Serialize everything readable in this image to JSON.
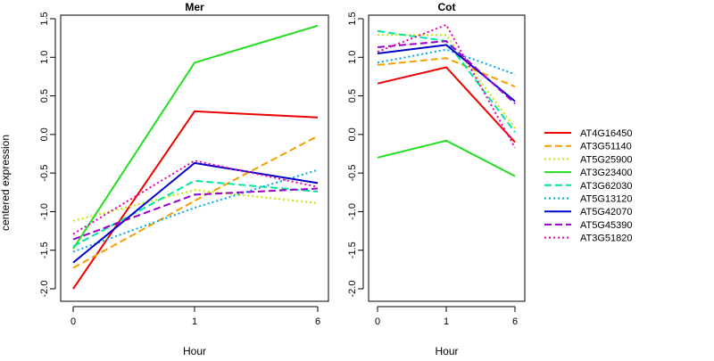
{
  "chart_data": {
    "type": "line",
    "ylabel": "centered expression",
    "xlabel": "Hour",
    "x_ticks": [
      "0",
      "1",
      "6"
    ],
    "ylim": [
      -2.0,
      1.5
    ],
    "y_ticks": [
      "-2.0",
      "-1.5",
      "-1.0",
      "-0.5",
      "0.0",
      "0.5",
      "1.0",
      "1.5"
    ],
    "legend_position": "right",
    "grid": false,
    "series_styles": [
      {
        "name": "AT4G16450",
        "color": "#ee0000",
        "dash": "solid"
      },
      {
        "name": "AT3G51140",
        "color": "#f5a000",
        "dash": "dashed"
      },
      {
        "name": "AT5G25900",
        "color": "#c8e600",
        "dash": "dotted"
      },
      {
        "name": "AT3G23400",
        "color": "#22dd22",
        "dash": "solid"
      },
      {
        "name": "AT3G62030",
        "color": "#00e6a0",
        "dash": "dashed"
      },
      {
        "name": "AT5G13120",
        "color": "#00a8e6",
        "dash": "dotted"
      },
      {
        "name": "AT5G42070",
        "color": "#0000cc",
        "dash": "solid"
      },
      {
        "name": "AT5G45390",
        "color": "#9900cc",
        "dash": "dashed"
      },
      {
        "name": "AT3G51820",
        "color": "#e600b4",
        "dash": "dotted"
      }
    ],
    "panels": [
      {
        "title": "Mer",
        "series": [
          {
            "name": "AT4G16450",
            "values": [
              -2.0,
              0.3,
              0.22
            ]
          },
          {
            "name": "AT3G51140",
            "values": [
              -1.73,
              -0.86,
              -0.02
            ]
          },
          {
            "name": "AT5G25900",
            "values": [
              -1.12,
              -0.72,
              -0.89
            ]
          },
          {
            "name": "AT3G23400",
            "values": [
              -1.48,
              0.93,
              1.41
            ]
          },
          {
            "name": "AT3G62030",
            "values": [
              -1.45,
              -0.6,
              -0.74
            ]
          },
          {
            "name": "AT5G13120",
            "values": [
              -1.52,
              -0.95,
              -0.46
            ]
          },
          {
            "name": "AT5G42070",
            "values": [
              -1.66,
              -0.37,
              -0.63
            ]
          },
          {
            "name": "AT5G45390",
            "values": [
              -1.36,
              -0.78,
              -0.7
            ]
          },
          {
            "name": "AT3G51820",
            "values": [
              -1.29,
              -0.34,
              -0.68
            ]
          }
        ]
      },
      {
        "title": "Cot",
        "series": [
          {
            "name": "AT4G16450",
            "values": [
              0.66,
              0.87,
              -0.1
            ]
          },
          {
            "name": "AT3G51140",
            "values": [
              0.9,
              0.99,
              0.62
            ]
          },
          {
            "name": "AT5G25900",
            "values": [
              1.29,
              1.29,
              0.08
            ]
          },
          {
            "name": "AT3G23400",
            "values": [
              -0.3,
              -0.08,
              -0.54
            ]
          },
          {
            "name": "AT3G62030",
            "values": [
              1.34,
              1.21,
              0.03
            ]
          },
          {
            "name": "AT5G13120",
            "values": [
              0.93,
              1.1,
              0.78
            ]
          },
          {
            "name": "AT5G42070",
            "values": [
              1.05,
              1.16,
              0.43
            ]
          },
          {
            "name": "AT5G45390",
            "values": [
              1.13,
              1.21,
              0.4
            ]
          },
          {
            "name": "AT3G51820",
            "values": [
              1.07,
              1.42,
              -0.17
            ]
          }
        ]
      }
    ]
  }
}
